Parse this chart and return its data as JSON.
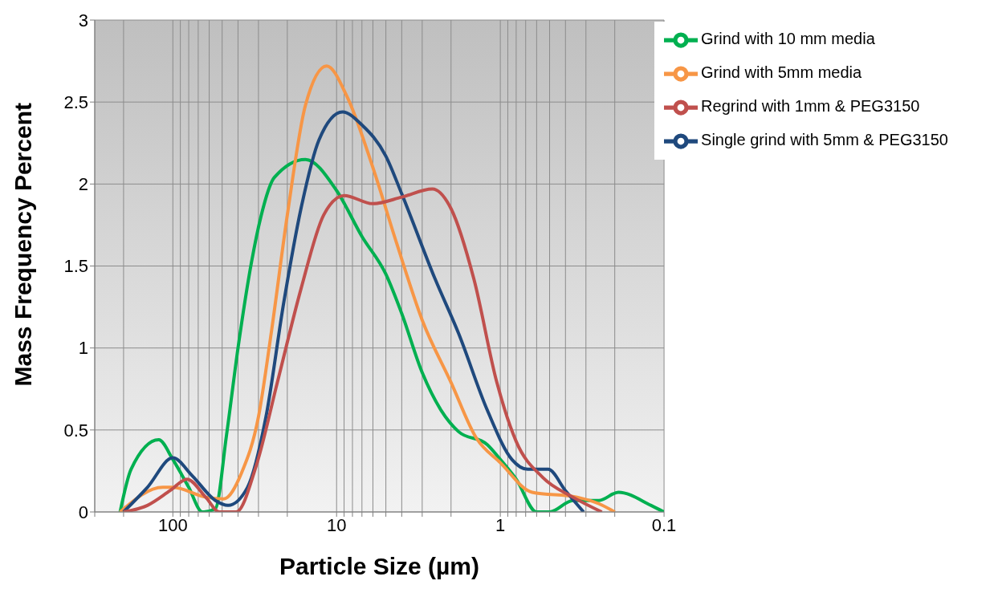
{
  "chart_data": {
    "type": "line",
    "xlabel": "Particle Size (µm)",
    "ylabel": "Mass Frequency Percent",
    "log": "x",
    "xlim": [
      300,
      0.1
    ],
    "ylim": [
      0,
      3
    ],
    "xticks": [
      {
        "value": 300,
        "label": null
      },
      {
        "value": 200,
        "label": null
      },
      100,
      {
        "value": 90,
        "label": null
      },
      {
        "value": 80,
        "label": null
      },
      {
        "value": 70,
        "label": null
      },
      {
        "value": 60,
        "label": null
      },
      {
        "value": 50,
        "label": null
      },
      {
        "value": 40,
        "label": null
      },
      {
        "value": 30,
        "label": null
      },
      {
        "value": 20,
        "label": null
      },
      10,
      {
        "value": 9,
        "label": null
      },
      {
        "value": 8,
        "label": null
      },
      {
        "value": 7,
        "label": null
      },
      {
        "value": 6,
        "label": null
      },
      {
        "value": 5,
        "label": null
      },
      {
        "value": 4,
        "label": null
      },
      {
        "value": 3,
        "label": null
      },
      {
        "value": 2,
        "label": null
      },
      1,
      {
        "value": 0.9,
        "label": null
      },
      {
        "value": 0.8,
        "label": null
      },
      {
        "value": 0.7,
        "label": null
      },
      {
        "value": 0.6,
        "label": null
      },
      {
        "value": 0.5,
        "label": null
      },
      {
        "value": 0.4,
        "label": null
      },
      {
        "value": 0.3,
        "label": null
      },
      {
        "value": 0.2,
        "label": null
      },
      0.1
    ],
    "yticks": [
      0,
      0.5,
      1,
      1.5,
      2,
      2.5,
      3
    ],
    "grid": true,
    "legend": "top right",
    "marker": "none",
    "line_style": "solid",
    "series": [
      {
        "name": "Grind with 10 mm media",
        "color": "#00b050",
        "x": [
          210,
          180,
          122,
          100,
          80,
          66,
          55,
          47,
          40,
          33,
          29,
          24,
          15.5,
          10,
          7,
          5,
          4,
          3,
          2.3,
          1.8,
          1.2,
          1,
          0.8,
          0.6,
          0.5,
          0.36,
          0.25,
          0.19,
          0.12,
          0.1
        ],
        "values": [
          0,
          0.26,
          0.44,
          0.32,
          0.15,
          0,
          0.02,
          0.47,
          1.0,
          1.53,
          1.8,
          2.04,
          2.15,
          1.96,
          1.68,
          1.45,
          1.21,
          0.85,
          0.62,
          0.49,
          0.41,
          0.32,
          0.2,
          0,
          0,
          0.07,
          0.07,
          0.12,
          0.04,
          0
        ]
      },
      {
        "name": "Grind with 5mm media",
        "color": "#f79646",
        "x": [
          210,
          115,
          100,
          63,
          49,
          38,
          30,
          25,
          20,
          15.5,
          11.5,
          8.6,
          6,
          4.3,
          3,
          2,
          1.4,
          1,
          0.64,
          0.34,
          0.25,
          0.2
        ],
        "values": [
          0,
          0.15,
          0.15,
          0.09,
          0.08,
          0.24,
          0.58,
          1.1,
          1.81,
          2.48,
          2.72,
          2.53,
          2.1,
          1.64,
          1.17,
          0.79,
          0.45,
          0.3,
          0.12,
          0.09,
          0.05,
          0
        ]
      },
      {
        "name": "Single grind with 5mm & PEG3150",
        "color": "#1f497d",
        "x": [
          200,
          143,
          100,
          76,
          55,
          46,
          35,
          27,
          21,
          16.5,
          12.8,
          9.2,
          7,
          5,
          4,
          2.5,
          1.8,
          1.2,
          0.85,
          0.68,
          0.51,
          0.4,
          0.31
        ],
        "values": [
          0,
          0.15,
          0.33,
          0.22,
          0.07,
          0.04,
          0.15,
          0.58,
          1.28,
          1.85,
          2.27,
          2.44,
          2.36,
          2.17,
          1.94,
          1.42,
          1.09,
          0.62,
          0.32,
          0.26,
          0.26,
          0.13,
          0
        ]
      },
      {
        "name": "Regrind with 1mm & PEG3150",
        "color": "#c0504d",
        "x": [
          200,
          143,
          104,
          82,
          63,
          52,
          41,
          31,
          23,
          16.5,
          12,
          9,
          6,
          4,
          2.6,
          2,
          1.45,
          1.05,
          0.8,
          0.55,
          0.36,
          0.24
        ],
        "values": [
          0,
          0.04,
          0.13,
          0.2,
          0.09,
          0,
          0,
          0.28,
          0.79,
          1.36,
          1.81,
          1.93,
          1.88,
          1.92,
          1.97,
          1.85,
          1.42,
          0.79,
          0.43,
          0.21,
          0.09,
          0
        ]
      }
    ]
  }
}
